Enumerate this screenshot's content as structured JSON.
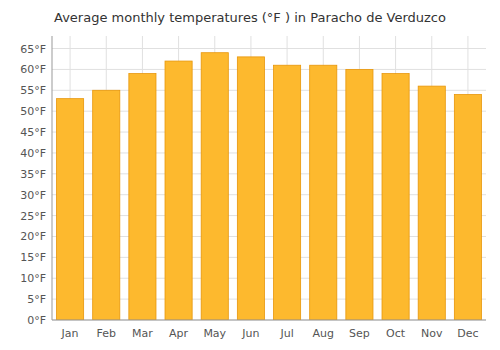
{
  "chart_data": {
    "type": "bar",
    "title": "Average monthly temperatures (°F ) in Paracho de Verduzco",
    "categories": [
      "Jan",
      "Feb",
      "Mar",
      "Apr",
      "May",
      "Jun",
      "Jul",
      "Aug",
      "Sep",
      "Oct",
      "Nov",
      "Dec"
    ],
    "values": [
      53,
      55,
      59,
      62,
      64,
      63,
      61,
      61,
      60,
      59,
      56,
      54
    ],
    "color": "#FDB92E",
    "ylim": [
      0,
      68
    ],
    "yticks": [
      {
        "value": 0,
        "label": "0°F"
      },
      {
        "value": 5,
        "label": "5°F"
      },
      {
        "value": 10,
        "label": "10°F"
      },
      {
        "value": 15,
        "label": "15°F"
      },
      {
        "value": 20,
        "label": "20°F"
      },
      {
        "value": 25,
        "label": "25°F"
      },
      {
        "value": 30,
        "label": "30°F"
      },
      {
        "value": 35,
        "label": "35°F"
      },
      {
        "value": 40,
        "label": "40°F"
      },
      {
        "value": 45,
        "label": "45°F"
      },
      {
        "value": 50,
        "label": "50°F"
      },
      {
        "value": 55,
        "label": "55°F"
      },
      {
        "value": 60,
        "label": "60°F"
      },
      {
        "value": 65,
        "label": "65°F"
      }
    ],
    "grid": true
  }
}
